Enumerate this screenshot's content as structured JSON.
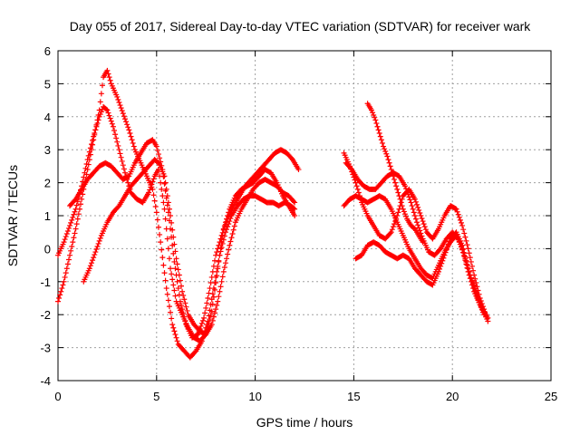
{
  "chart_data": {
    "type": "scatter",
    "title": "Day 055 of 2017, Sidereal Day-to-day VTEC variation (SDTVAR) for receiver wark",
    "xlabel": "GPS time / hours",
    "ylabel": "SDTVAR / TECUs",
    "xlim": [
      0,
      25
    ],
    "ylim": [
      -4,
      6
    ],
    "xticks": [
      "0",
      "5",
      "10",
      "15",
      "20",
      "25"
    ],
    "yticks": [
      "-4",
      "-3",
      "-2",
      "-1",
      "0",
      "1",
      "2",
      "3",
      "4",
      "5",
      "6"
    ],
    "grid": true,
    "marker": "plus",
    "color": "#ff0000",
    "series": [
      {
        "x": [
          0.0,
          0.3,
          0.6,
          0.9,
          1.2,
          1.5,
          1.8,
          2.1,
          2.3,
          2.5,
          2.7,
          3.0,
          3.3,
          3.6,
          3.9,
          4.2,
          4.5,
          4.8,
          5.0,
          5.2,
          5.5,
          5.8,
          6.1,
          6.4,
          6.7,
          7.0,
          7.3,
          7.6,
          7.9,
          8.2,
          8.5,
          8.8,
          9.1,
          9.4,
          9.7,
          10.0,
          10.3,
          10.6,
          10.9,
          11.2,
          11.5,
          11.8,
          12.0
        ],
        "y": [
          -1.6,
          -1.0,
          -0.2,
          0.6,
          1.5,
          2.4,
          3.3,
          4.2,
          5.2,
          5.4,
          5.0,
          4.6,
          4.1,
          3.6,
          3.0,
          2.6,
          2.2,
          1.8,
          1.1,
          0.2,
          -1.2,
          -2.3,
          -2.9,
          -3.1,
          -3.3,
          -3.1,
          -2.8,
          -2.2,
          -1.2,
          -0.2,
          0.5,
          1.0,
          1.3,
          1.5,
          1.6,
          1.6,
          1.5,
          1.4,
          1.4,
          1.3,
          1.4,
          1.3,
          1.2
        ]
      },
      {
        "x": [
          0.0,
          0.3,
          0.6,
          0.9,
          1.2,
          1.5,
          1.8,
          2.1,
          2.3,
          2.5,
          2.8,
          3.1,
          3.4,
          3.7,
          4.0,
          4.3,
          4.6,
          4.9,
          5.1,
          5.4,
          5.7,
          6.0,
          6.3,
          6.6,
          6.9,
          7.2,
          7.5,
          7.8,
          8.1,
          8.4,
          8.7,
          9.0,
          9.3,
          9.6,
          9.9,
          10.2,
          10.5,
          10.8,
          11.1,
          11.4,
          11.7,
          12.0
        ],
        "y": [
          -0.2,
          0.2,
          0.7,
          1.2,
          1.9,
          2.7,
          3.4,
          4.0,
          4.3,
          4.2,
          3.7,
          3.0,
          2.3,
          1.7,
          1.5,
          1.4,
          1.7,
          2.2,
          2.4,
          1.2,
          -0.6,
          -1.6,
          -2.0,
          -2.4,
          -2.7,
          -2.8,
          -2.6,
          -1.9,
          -0.6,
          0.6,
          1.2,
          1.6,
          1.8,
          1.9,
          2.0,
          2.2,
          2.4,
          2.3,
          2.0,
          1.6,
          1.3,
          1.0
        ]
      },
      {
        "x": [
          1.3,
          1.6,
          1.9,
          2.2,
          2.5,
          2.8,
          3.1,
          3.4,
          3.7,
          4.0,
          4.3,
          4.6,
          4.9,
          5.1,
          5.4,
          5.7,
          6.0,
          6.3,
          6.6,
          6.9,
          7.2,
          7.5,
          7.8,
          8.1,
          8.4,
          8.7,
          9.0,
          9.3,
          9.6,
          9.9,
          10.2,
          10.5,
          10.8,
          11.1,
          11.4,
          11.7,
          12.0
        ],
        "y": [
          -1.0,
          -0.6,
          -0.1,
          0.4,
          0.8,
          1.1,
          1.3,
          1.6,
          1.9,
          2.1,
          2.3,
          2.5,
          2.7,
          2.6,
          2.2,
          1.0,
          -0.3,
          -1.3,
          -2.0,
          -2.3,
          -2.5,
          -2.6,
          -2.3,
          -1.6,
          -0.7,
          0.1,
          0.8,
          1.2,
          1.5,
          1.8,
          2.0,
          2.1,
          2.0,
          1.9,
          1.7,
          1.6,
          1.4
        ]
      },
      {
        "x": [
          0.6,
          0.9,
          1.2,
          1.5,
          1.8,
          2.1,
          2.4,
          2.7,
          3.0,
          3.3,
          3.6,
          3.9,
          4.2,
          4.5,
          4.8,
          5.0,
          5.3,
          5.6,
          5.9,
          6.2,
          6.5,
          6.8,
          7.1,
          7.4,
          7.7,
          8.0,
          8.3,
          8.6,
          8.9,
          9.2,
          9.5,
          9.8,
          10.1,
          10.4,
          10.7,
          11.0,
          11.3,
          11.6,
          11.9,
          12.2
        ],
        "y": [
          1.3,
          1.5,
          1.8,
          2.1,
          2.3,
          2.5,
          2.6,
          2.5,
          2.3,
          2.1,
          2.2,
          2.6,
          2.9,
          3.2,
          3.3,
          3.1,
          2.4,
          1.1,
          -0.4,
          -1.6,
          -2.3,
          -2.7,
          -2.6,
          -2.1,
          -1.2,
          -0.2,
          0.4,
          0.9,
          1.3,
          1.6,
          1.9,
          2.1,
          2.3,
          2.5,
          2.7,
          2.9,
          3.0,
          2.9,
          2.7,
          2.4
        ]
      },
      {
        "x": [
          14.5,
          14.8,
          15.1,
          15.4,
          15.7,
          16.0,
          16.3,
          16.6,
          16.9,
          17.2,
          17.5,
          17.8,
          18.1,
          18.4,
          18.7,
          19.0,
          19.3,
          19.6,
          19.9,
          20.2,
          20.5,
          20.8,
          21.1,
          21.4,
          21.7,
          21.8
        ],
        "y": [
          2.9,
          2.5,
          2.0,
          1.4,
          1.0,
          0.7,
          0.4,
          0.3,
          0.5,
          1.0,
          1.6,
          1.8,
          1.5,
          1.0,
          0.5,
          0.3,
          0.6,
          1.0,
          1.3,
          1.2,
          0.7,
          0.0,
          -0.8,
          -1.5,
          -2.0,
          -2.1
        ]
      },
      {
        "x": [
          14.6,
          14.9,
          15.2,
          15.5,
          15.8,
          16.1,
          16.4,
          16.7,
          17.0,
          17.3,
          17.6,
          17.9,
          18.2,
          18.5,
          18.8,
          19.1,
          19.4,
          19.7,
          20.0,
          20.3,
          20.6,
          20.9,
          21.2,
          21.5,
          21.8
        ],
        "y": [
          2.6,
          2.4,
          2.1,
          1.9,
          1.8,
          1.8,
          2.0,
          2.2,
          2.3,
          2.2,
          1.9,
          1.4,
          0.8,
          0.3,
          -0.1,
          -0.2,
          0.0,
          0.3,
          0.5,
          0.3,
          -0.2,
          -0.8,
          -1.3,
          -1.8,
          -2.2
        ]
      },
      {
        "x": [
          14.5,
          14.8,
          15.1,
          15.4,
          15.7,
          16.0,
          16.3,
          16.6,
          16.9,
          17.2,
          17.5,
          17.8,
          18.1,
          18.4,
          18.7,
          19.0,
          19.3,
          19.6,
          19.9,
          20.2,
          20.5,
          20.8,
          21.1,
          21.4,
          21.6
        ],
        "y": [
          1.3,
          1.5,
          1.6,
          1.5,
          1.4,
          1.5,
          1.6,
          1.5,
          1.2,
          0.8,
          0.4,
          0.0,
          -0.3,
          -0.6,
          -0.8,
          -0.9,
          -0.5,
          -0.1,
          0.2,
          0.4,
          0.0,
          -0.7,
          -1.3,
          -1.7,
          -2.0
        ]
      },
      {
        "x": [
          15.1,
          15.4,
          15.7,
          16.0,
          16.3,
          16.6,
          16.9,
          17.2,
          17.5,
          17.8,
          18.1,
          18.4,
          18.7,
          19.0,
          19.3,
          19.6,
          19.9,
          20.2,
          20.5,
          20.8,
          21.1,
          21.4,
          21.7
        ],
        "y": [
          -0.3,
          -0.2,
          0.1,
          0.2,
          0.1,
          -0.1,
          -0.2,
          -0.3,
          -0.2,
          -0.3,
          -0.6,
          -0.8,
          -1.0,
          -1.1,
          -0.7,
          -0.2,
          0.3,
          0.5,
          0.1,
          -0.6,
          -1.2,
          -1.7,
          -2.0
        ]
      },
      {
        "x": [
          15.7,
          15.9,
          16.1,
          16.3,
          16.5,
          16.7,
          16.9,
          17.1,
          17.3,
          17.5,
          17.7,
          17.9,
          18.1,
          18.3,
          18.5
        ],
        "y": [
          4.4,
          4.2,
          3.9,
          3.5,
          3.1,
          2.8,
          2.4,
          2.0,
          1.6,
          1.2,
          0.9,
          0.7,
          0.6,
          0.4,
          0.2
        ]
      }
    ]
  }
}
